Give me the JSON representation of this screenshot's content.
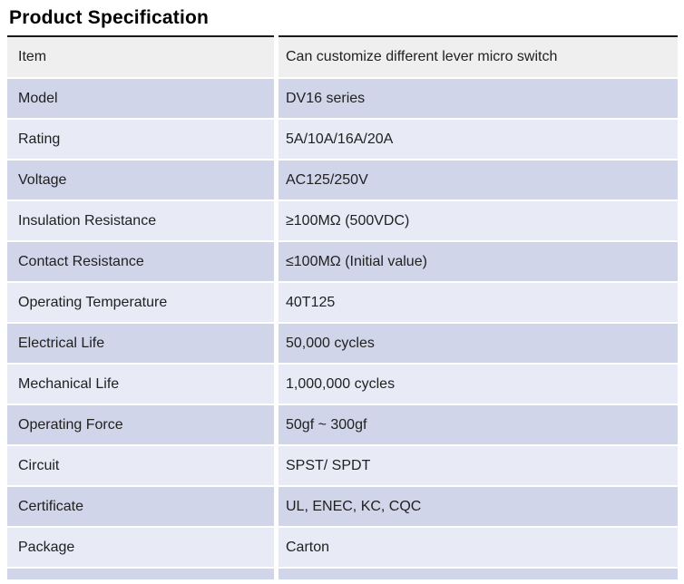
{
  "title": "Product Specification",
  "colors": {
    "header_row_bg": "#efefef",
    "dark_row_bg": "#d0d5e9",
    "light_row_bg": "#e8eaf6",
    "top_rule": "#1a1a1a",
    "text": "#212121"
  },
  "table": {
    "rows": [
      {
        "label": "Item",
        "value": "Can customize different lever micro switch"
      },
      {
        "label": "Model",
        "value": "DV16 series"
      },
      {
        "label": "Rating",
        "value": "5A/10A/16A/20A"
      },
      {
        "label": "Voltage",
        "value": "AC125/250V"
      },
      {
        "label": "Insulation Resistance",
        "value": "≥100MΩ (500VDC)"
      },
      {
        "label": "Contact Resistance",
        "value": "≤100MΩ (Initial value)"
      },
      {
        "label": "Operating Temperature",
        "value": "40T125"
      },
      {
        "label": "Electrical Life",
        "value": "50,000 cycles"
      },
      {
        "label": "Mechanical Life",
        "value": "1,000,000 cycles"
      },
      {
        "label": "Operating Force",
        "value": "50gf ~ 300gf"
      },
      {
        "label": "Circuit",
        "value": "SPST/ SPDT"
      },
      {
        "label": "Certificate",
        "value": "UL, ENEC, KC, CQC"
      },
      {
        "label": "Package",
        "value": "Carton"
      }
    ]
  }
}
